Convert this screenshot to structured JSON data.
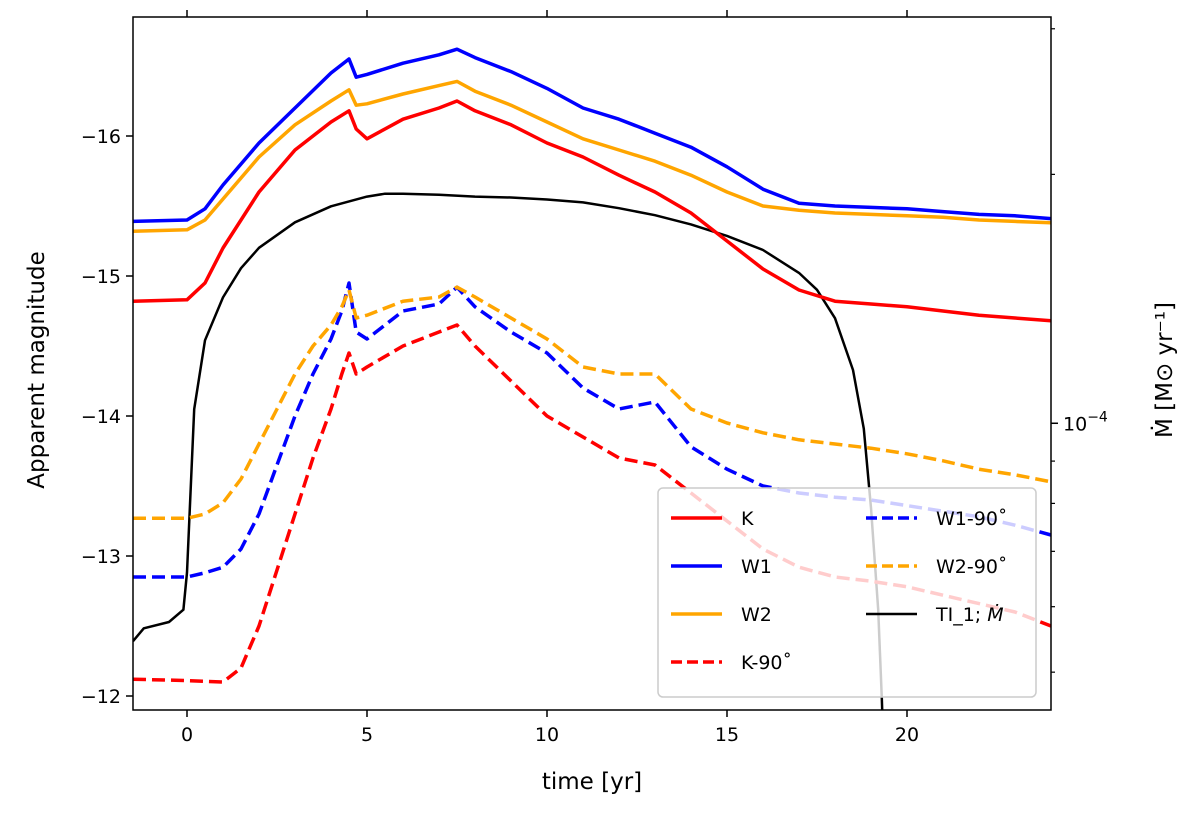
{
  "chart_data": {
    "type": "line",
    "title": "",
    "xlabel": "time [yr]",
    "ylabel": "Apparent magnitude",
    "y2label": "Ṁ [M⊙ yr⁻¹]",
    "xlim": [
      -1.5,
      24
    ],
    "ylim": [
      -11.9,
      -16.85
    ],
    "x_ticks": [
      0,
      5,
      10,
      15,
      20
    ],
    "x_tick_labels": [
      "0",
      "5",
      "10",
      "15",
      "20"
    ],
    "y_ticks": [
      -12,
      -13,
      -14,
      -15,
      -16
    ],
    "y_tick_labels": [
      "−12",
      "−13",
      "−14",
      "−15",
      "−16"
    ],
    "y2_ticks": [
      0.0001
    ],
    "y2_tick_label_base": "10",
    "y2_tick_label_exp": "−4",
    "y2_scale": "log",
    "y2_lim": [
      4.5e-05,
      0.00031
    ],
    "y2_minor_ticks": [
      5e-05,
      6e-05,
      7e-05,
      8e-05,
      9e-05,
      0.0002,
      0.0003
    ],
    "legend_position": "lower-right",
    "series": [
      {
        "name": "K",
        "label": "K",
        "color": "#ff0000",
        "style": "solid",
        "axis": "left",
        "x": [
          -1.5,
          0,
          0.5,
          1,
          2,
          3,
          4,
          4.5,
          4.7,
          5,
          6,
          7,
          7.5,
          8,
          9,
          10,
          11,
          12,
          13,
          14,
          15,
          16,
          17,
          18,
          19,
          20,
          21,
          22,
          23,
          24
        ],
        "y": [
          -14.82,
          -14.83,
          -14.95,
          -15.2,
          -15.6,
          -15.9,
          -16.1,
          -16.18,
          -16.05,
          -15.98,
          -16.12,
          -16.2,
          -16.25,
          -16.18,
          -16.08,
          -15.95,
          -15.85,
          -15.72,
          -15.6,
          -15.45,
          -15.25,
          -15.05,
          -14.9,
          -14.82,
          -14.8,
          -14.78,
          -14.75,
          -14.72,
          -14.7,
          -14.68
        ]
      },
      {
        "name": "W1",
        "label": "W1",
        "color": "#0000ff",
        "style": "solid",
        "axis": "left",
        "x": [
          -1.5,
          0,
          0.5,
          1,
          2,
          3,
          4,
          4.5,
          4.7,
          5,
          6,
          7,
          7.5,
          8,
          9,
          10,
          11,
          12,
          13,
          14,
          15,
          16,
          17,
          18,
          19,
          20,
          21,
          22,
          23,
          24
        ],
        "y": [
          -15.39,
          -15.4,
          -15.48,
          -15.65,
          -15.95,
          -16.2,
          -16.45,
          -16.55,
          -16.42,
          -16.44,
          -16.52,
          -16.58,
          -16.62,
          -16.56,
          -16.46,
          -16.34,
          -16.2,
          -16.12,
          -16.02,
          -15.92,
          -15.78,
          -15.62,
          -15.52,
          -15.5,
          -15.49,
          -15.48,
          -15.46,
          -15.44,
          -15.43,
          -15.41
        ]
      },
      {
        "name": "W2",
        "label": "W2",
        "color": "#ffa500",
        "style": "solid",
        "axis": "left",
        "x": [
          -1.5,
          0,
          0.5,
          1,
          2,
          3,
          4,
          4.5,
          4.7,
          5,
          6,
          7,
          7.5,
          8,
          9,
          10,
          11,
          12,
          13,
          14,
          15,
          16,
          17,
          18,
          19,
          20,
          21,
          22,
          23,
          24
        ],
        "y": [
          -15.32,
          -15.33,
          -15.4,
          -15.55,
          -15.85,
          -16.08,
          -16.25,
          -16.33,
          -16.22,
          -16.23,
          -16.3,
          -16.36,
          -16.39,
          -16.32,
          -16.22,
          -16.1,
          -15.98,
          -15.9,
          -15.82,
          -15.72,
          -15.6,
          -15.5,
          -15.47,
          -15.45,
          -15.44,
          -15.43,
          -15.42,
          -15.4,
          -15.39,
          -15.38
        ]
      },
      {
        "name": "K-90°",
        "label": "K-90˚",
        "color": "#ff0000",
        "style": "dashed",
        "axis": "left",
        "x": [
          -1.5,
          0,
          1,
          1.5,
          2,
          2.5,
          3,
          3.5,
          4,
          4.3,
          4.5,
          4.7,
          5,
          6,
          7,
          7.5,
          8,
          9,
          10,
          11,
          12,
          13,
          14,
          15,
          16,
          17,
          18,
          19,
          20,
          21,
          22,
          23,
          24
        ],
        "y": [
          -12.12,
          -12.11,
          -12.1,
          -12.2,
          -12.5,
          -12.9,
          -13.3,
          -13.7,
          -14.05,
          -14.3,
          -14.45,
          -14.3,
          -14.35,
          -14.5,
          -14.6,
          -14.65,
          -14.5,
          -14.25,
          -14.0,
          -13.85,
          -13.7,
          -13.65,
          -13.45,
          -13.25,
          -13.05,
          -12.92,
          -12.85,
          -12.82,
          -12.78,
          -12.72,
          -12.66,
          -12.6,
          -12.5
        ]
      },
      {
        "name": "W1-90°",
        "label": "W1-90˚",
        "color": "#0000ff",
        "style": "dashed",
        "axis": "left",
        "x": [
          -1.5,
          0,
          0.5,
          1,
          1.5,
          2,
          2.5,
          3,
          3.5,
          4,
          4.3,
          4.5,
          4.7,
          5,
          6,
          7,
          7.5,
          8,
          9,
          10,
          11,
          12,
          13,
          14,
          15,
          16,
          17,
          18,
          19,
          20,
          21,
          22,
          23,
          24
        ],
        "y": [
          -12.85,
          -12.85,
          -12.88,
          -12.92,
          -13.05,
          -13.3,
          -13.65,
          -14.0,
          -14.3,
          -14.55,
          -14.75,
          -14.95,
          -14.6,
          -14.55,
          -14.75,
          -14.8,
          -14.92,
          -14.78,
          -14.6,
          -14.45,
          -14.2,
          -14.05,
          -14.1,
          -13.78,
          -13.62,
          -13.5,
          -13.45,
          -13.42,
          -13.4,
          -13.36,
          -13.32,
          -13.28,
          -13.22,
          -13.15
        ]
      },
      {
        "name": "W2-90°",
        "label": "W2-90˚",
        "color": "#ffa500",
        "style": "dashed",
        "axis": "left",
        "x": [
          -1.5,
          0,
          0.5,
          1,
          1.5,
          2,
          2.5,
          3,
          3.5,
          4,
          4.3,
          4.5,
          4.7,
          5,
          6,
          7,
          7.5,
          8,
          9,
          10,
          11,
          12,
          13,
          14,
          15,
          16,
          17,
          18,
          19,
          20,
          21,
          22,
          23,
          24
        ],
        "y": [
          -13.27,
          -13.27,
          -13.3,
          -13.38,
          -13.55,
          -13.8,
          -14.05,
          -14.3,
          -14.5,
          -14.65,
          -14.78,
          -14.9,
          -14.7,
          -14.72,
          -14.82,
          -14.85,
          -14.92,
          -14.85,
          -14.7,
          -14.55,
          -14.35,
          -14.3,
          -14.3,
          -14.05,
          -13.95,
          -13.88,
          -13.83,
          -13.8,
          -13.77,
          -13.73,
          -13.68,
          -13.62,
          -13.58,
          -13.53
        ]
      },
      {
        "name": "TI_1; Mdot",
        "label_prefix": "TI_1; ",
        "label_symbol": "Ṁ",
        "color": "#000000",
        "style": "solid",
        "axis": "right",
        "x": [
          -1.5,
          -1.2,
          -0.5,
          -0.1,
          0,
          0.2,
          0.5,
          1,
          1.5,
          2,
          3,
          4,
          5,
          5.5,
          6,
          7,
          8,
          9,
          10,
          11,
          12,
          13,
          14,
          15,
          16,
          17,
          17.5,
          18,
          18.5,
          18.8,
          19,
          19.2,
          19.3,
          19.35
        ],
        "y": [
          5.45e-05,
          5.65e-05,
          5.75e-05,
          5.95e-05,
          6.6e-05,
          0.000104,
          0.000126,
          0.000142,
          0.000154,
          0.000163,
          0.000175,
          0.000183,
          0.000188,
          0.0001895,
          0.0001895,
          0.000189,
          0.000188,
          0.0001875,
          0.0001865,
          0.000185,
          0.000182,
          0.0001785,
          0.000174,
          0.0001685,
          0.000162,
          0.000152,
          0.000145,
          0.000134,
          0.000116,
          9.85e-05,
          7.9e-05,
          5.95e-05,
          4.65e-05,
          4e-05
        ]
      }
    ]
  }
}
